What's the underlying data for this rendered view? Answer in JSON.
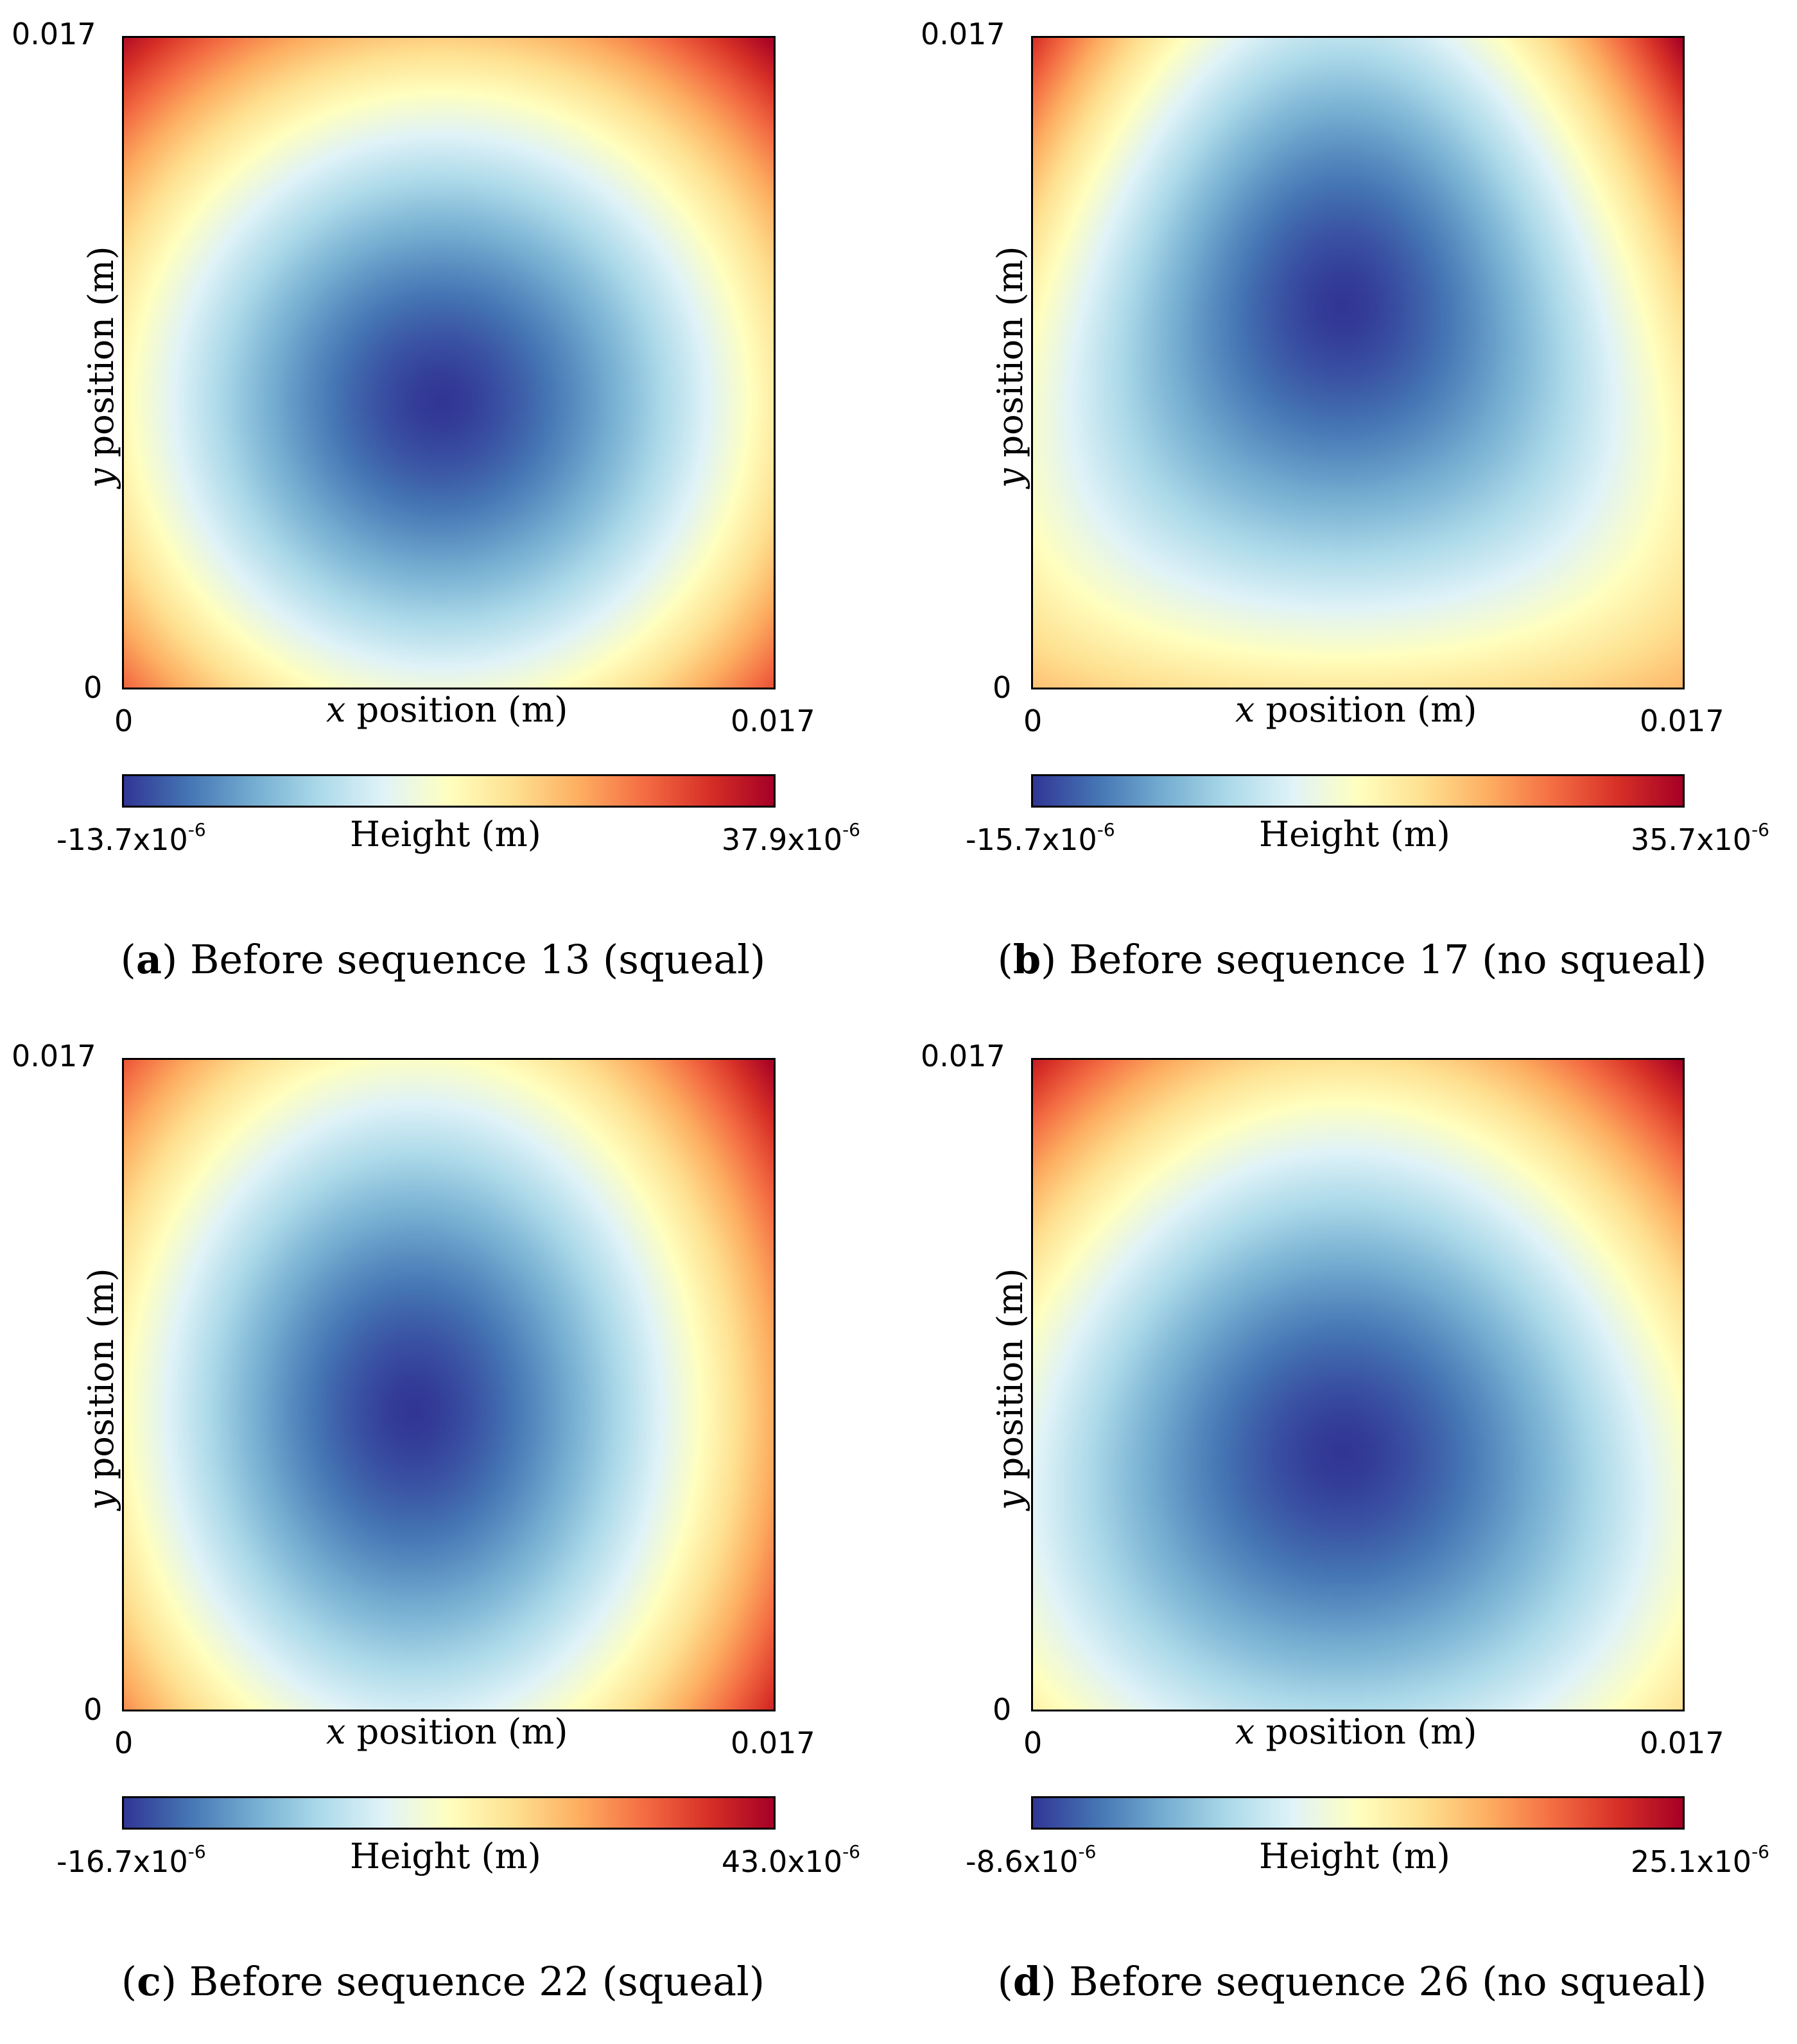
{
  "chart_data": [
    {
      "type": "heatmap",
      "panel_letter": "a",
      "caption": "Before sequence 13 (squeal)",
      "xlabel": "x position (m)",
      "ylabel": "y position (m)",
      "x_ticks": [
        "0",
        "0.017"
      ],
      "y_ticks": [
        "0",
        "0.017"
      ],
      "xlim": [
        0,
        0.017
      ],
      "ylim": [
        0,
        0.017
      ],
      "colorbar_label": "Height (m)",
      "colorbar_min": "-13.7x10",
      "colorbar_max": "37.9x10",
      "colorbar_exponent": "-6",
      "zmin": -1.37e-05,
      "zmax": 3.79e-05,
      "minimum_location": [
        0.0083,
        0.0075
      ],
      "colormap": "RdYlBu_r"
    },
    {
      "type": "heatmap",
      "panel_letter": "b",
      "caption": "Before sequence 17 (no squeal)",
      "xlabel": "x position (m)",
      "ylabel": "y position (m)",
      "x_ticks": [
        "0",
        "0.017"
      ],
      "y_ticks": [
        "0",
        "0.017"
      ],
      "xlim": [
        0,
        0.017
      ],
      "ylim": [
        0,
        0.017
      ],
      "colorbar_label": "Height (m)",
      "colorbar_min": "-15.7x10",
      "colorbar_max": "35.7x10",
      "colorbar_exponent": "-6",
      "zmin": -1.57e-05,
      "zmax": 3.57e-05,
      "minimum_location": [
        0.0081,
        0.01
      ],
      "colormap": "RdYlBu_r"
    },
    {
      "type": "heatmap",
      "panel_letter": "c",
      "caption": "Before sequence 22 (squeal)",
      "xlabel": "x position (m)",
      "ylabel": "y position (m)",
      "x_ticks": [
        "0",
        "0.017"
      ],
      "y_ticks": [
        "0",
        "0.017"
      ],
      "xlim": [
        0,
        0.017
      ],
      "ylim": [
        0,
        0.017
      ],
      "colorbar_label": "Height (m)",
      "colorbar_min": "-16.7x10",
      "colorbar_max": "43.0x10",
      "colorbar_exponent": "-6",
      "zmin": -1.67e-05,
      "zmax": 4.3e-05,
      "minimum_location": [
        0.0076,
        0.0078
      ],
      "colormap": "RdYlBu_r"
    },
    {
      "type": "heatmap",
      "panel_letter": "d",
      "caption": "Before sequence 26 (no squeal)",
      "xlabel": "x position (m)",
      "ylabel": "y position (m)",
      "x_ticks": [
        "0",
        "0.017"
      ],
      "y_ticks": [
        "0",
        "0.017"
      ],
      "xlim": [
        0,
        0.017
      ],
      "ylim": [
        0,
        0.017
      ],
      "colorbar_label": "Height (m)",
      "colorbar_min": "-8.6x10",
      "colorbar_max": "25.1x10",
      "colorbar_exponent": "-6",
      "zmin": -8.6e-06,
      "zmax": 2.51e-05,
      "minimum_location": [
        0.0081,
        0.0067
      ],
      "colormap": "RdYlBu_r"
    }
  ]
}
